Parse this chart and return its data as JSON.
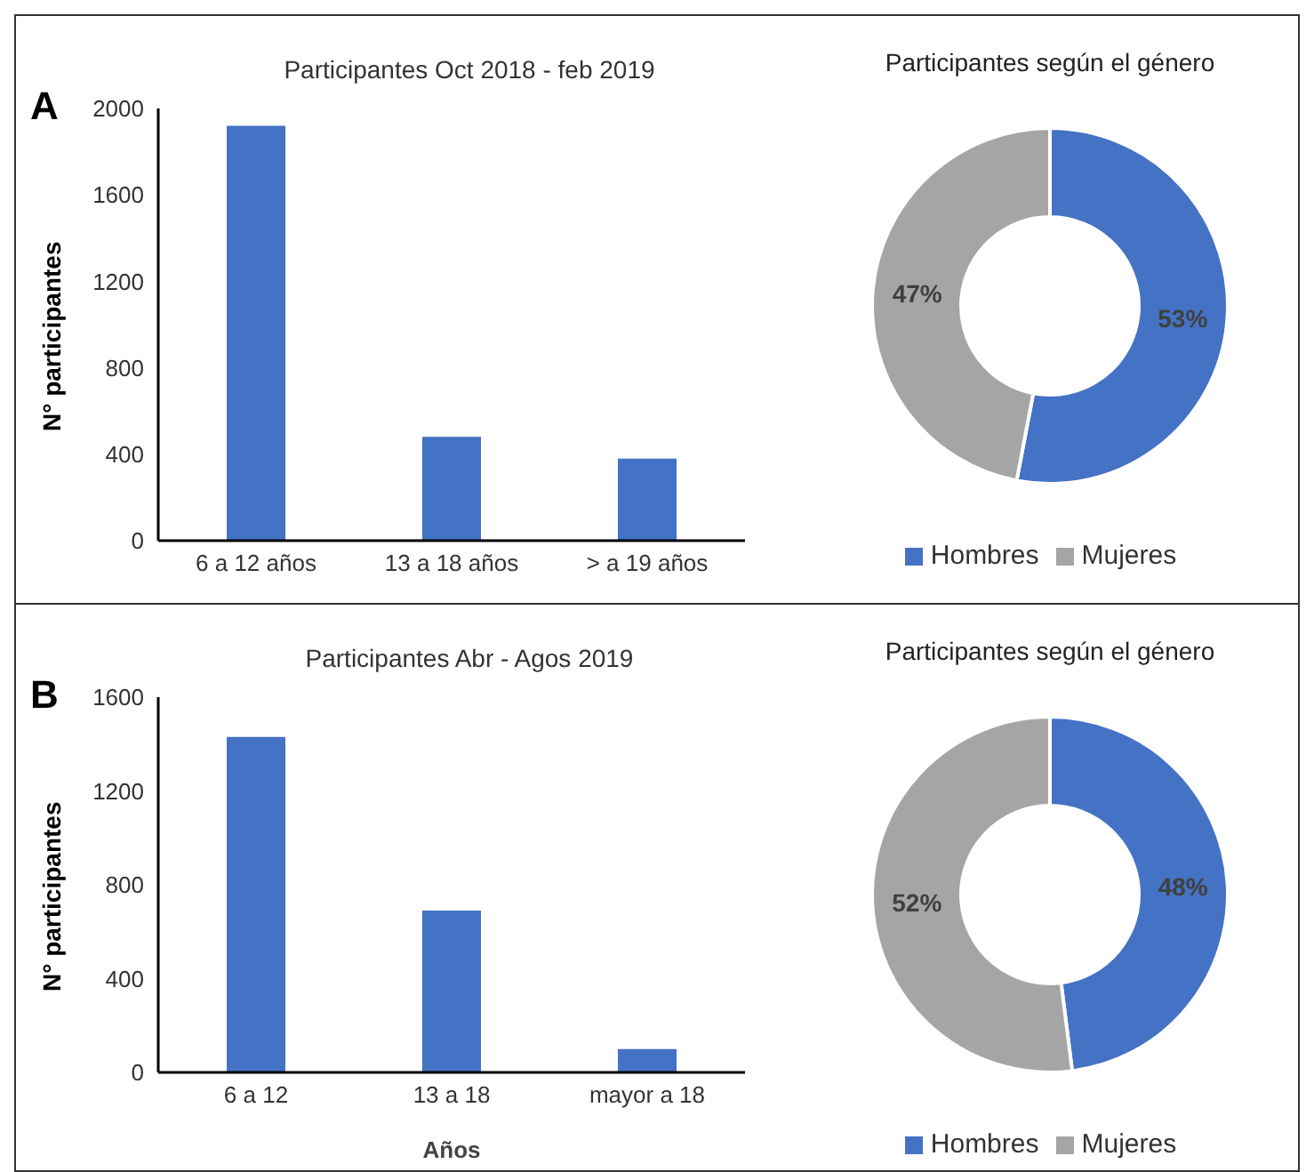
{
  "chart_data": [
    {
      "type": "bar",
      "title": "Participantes Oct 2018 - feb 2019",
      "ylabel": "N° participantes",
      "annotations": [
        "A"
      ],
      "categories": [
        "6 a 12  años",
        "13 a 18 años",
        "> a 19 años"
      ],
      "values": [
        1920,
        480,
        380
      ],
      "color": "#4472c4",
      "ylim": [
        0,
        2000
      ],
      "yticks": [
        0,
        400,
        800,
        1200,
        1600,
        2000
      ],
      "grid": false
    },
    {
      "type": "donut",
      "title": "Participantes según el género",
      "categories": [
        "Hombres",
        "Mujeres"
      ],
      "values": [
        53,
        47
      ],
      "colors": [
        "#4472c4",
        "#a5a5a5"
      ],
      "value_labels": [
        "53%",
        "47%"
      ],
      "legend": "bottom"
    },
    {
      "type": "bar",
      "title": "Participantes Abr - Agos 2019",
      "xlabel": "Años",
      "ylabel": "N° participantes",
      "annotations": [
        "B"
      ],
      "categories": [
        "6 a 12",
        "13 a 18",
        "mayor a 18"
      ],
      "values": [
        1430,
        690,
        100
      ],
      "color": "#4472c4",
      "ylim": [
        0,
        1600
      ],
      "yticks": [
        0,
        400,
        800,
        1200,
        1600
      ],
      "grid": false
    },
    {
      "type": "donut",
      "title": "Participantes según el género",
      "categories": [
        "Hombres",
        "Mujeres"
      ],
      "values": [
        48,
        52
      ],
      "colors": [
        "#4472c4",
        "#a5a5a5"
      ],
      "value_labels": [
        "48%",
        "52%"
      ],
      "legend": "bottom"
    }
  ]
}
